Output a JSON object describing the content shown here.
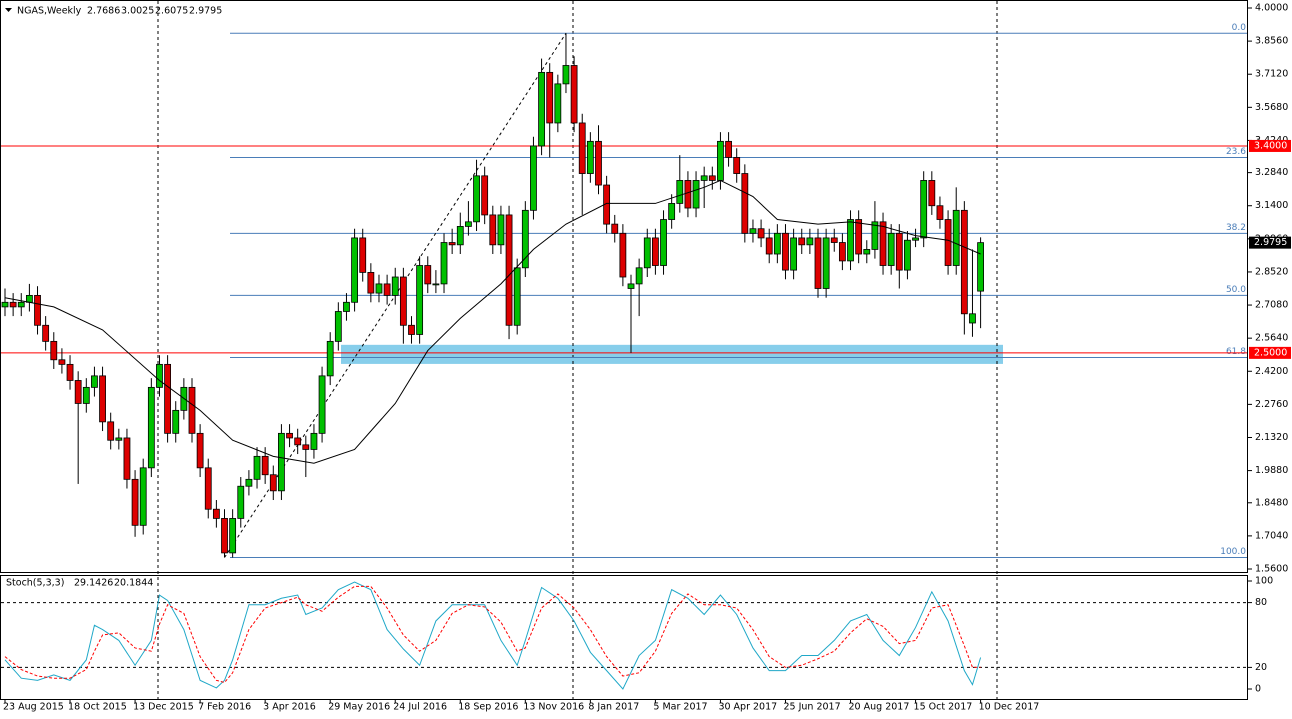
{
  "chart_data": [
    {
      "type": "candlestick",
      "symbol": "NGAS,Weekly",
      "up_color": "#00c000",
      "down_color": "#dd0000",
      "categories": [
        "23 Aug 2015",
        null,
        null,
        null,
        null,
        null,
        null,
        null,
        "18 Oct 2015",
        null,
        null,
        null,
        null,
        null,
        null,
        null,
        "13 Dec 2015",
        null,
        null,
        null,
        null,
        null,
        null,
        null,
        "7 Feb 2016",
        null,
        null,
        null,
        null,
        null,
        null,
        null,
        "3 Apr 2016",
        null,
        null,
        null,
        null,
        null,
        null,
        null,
        "29 May 2016",
        null,
        null,
        null,
        null,
        null,
        null,
        null,
        "24 Jul 2016",
        null,
        null,
        null,
        null,
        null,
        null,
        null,
        "18 Sep 2016",
        null,
        null,
        null,
        null,
        null,
        null,
        null,
        "13 Nov 2016",
        null,
        null,
        null,
        null,
        null,
        null,
        null,
        "8 Jan 2017",
        null,
        null,
        null,
        null,
        null,
        null,
        null,
        "5 Mar 2017",
        null,
        null,
        null,
        null,
        null,
        null,
        null,
        "30 Apr 2017",
        null,
        null,
        null,
        null,
        null,
        null,
        null,
        "25 Jun 2017",
        null,
        null,
        null,
        null,
        null,
        null,
        null,
        "20 Aug 2017",
        null,
        null,
        null,
        null,
        null,
        null,
        null,
        "15 Oct 2017",
        null,
        null,
        null,
        null,
        null,
        null,
        null,
        "10 Dec 2017"
      ],
      "candles": [
        [
          2.7,
          2.78,
          2.66,
          2.72
        ],
        [
          2.72,
          2.76,
          2.66,
          2.7
        ],
        [
          2.7,
          2.76,
          2.66,
          2.72
        ],
        [
          2.72,
          2.8,
          2.68,
          2.75
        ],
        [
          2.75,
          2.79,
          2.58,
          2.62
        ],
        [
          2.62,
          2.66,
          2.51,
          2.55
        ],
        [
          2.55,
          2.59,
          2.43,
          2.47
        ],
        [
          2.47,
          2.52,
          2.41,
          2.45
        ],
        [
          2.45,
          2.49,
          2.34,
          2.38
        ],
        [
          2.38,
          2.42,
          1.93,
          2.28
        ],
        [
          2.28,
          2.39,
          2.24,
          2.35
        ],
        [
          2.35,
          2.44,
          2.31,
          2.4
        ],
        [
          2.4,
          2.44,
          2.16,
          2.2
        ],
        [
          2.2,
          2.24,
          2.08,
          2.12
        ],
        [
          2.12,
          2.17,
          2.08,
          2.13
        ],
        [
          2.13,
          2.17,
          1.91,
          1.95
        ],
        [
          1.95,
          1.99,
          1.7,
          1.75
        ],
        [
          1.75,
          2.04,
          1.71,
          2.0
        ],
        [
          2.0,
          2.39,
          1.96,
          2.35
        ],
        [
          2.35,
          2.49,
          2.31,
          2.45
        ],
        [
          2.45,
          2.49,
          2.11,
          2.15
        ],
        [
          2.15,
          2.29,
          2.11,
          2.25
        ],
        [
          2.25,
          2.39,
          2.21,
          2.35
        ],
        [
          2.35,
          2.39,
          2.11,
          2.15
        ],
        [
          2.15,
          2.19,
          1.96,
          2.0
        ],
        [
          2.0,
          2.04,
          1.78,
          1.82
        ],
        [
          1.82,
          1.86,
          1.74,
          1.78
        ],
        [
          1.78,
          1.82,
          1.61,
          1.63
        ],
        [
          1.63,
          1.82,
          1.61,
          1.78
        ],
        [
          1.78,
          1.96,
          1.74,
          1.92
        ],
        [
          1.92,
          1.99,
          1.88,
          1.95
        ],
        [
          1.95,
          2.09,
          1.91,
          2.05
        ],
        [
          2.05,
          2.09,
          1.93,
          1.97
        ],
        [
          1.97,
          2.01,
          1.86,
          1.9
        ],
        [
          1.9,
          2.19,
          1.86,
          2.15
        ],
        [
          2.15,
          2.19,
          2.09,
          2.13
        ],
        [
          2.13,
          2.17,
          2.06,
          2.1
        ],
        [
          2.1,
          2.14,
          1.96,
          2.08
        ],
        [
          2.08,
          2.19,
          2.04,
          2.15
        ],
        [
          2.15,
          2.44,
          2.11,
          2.4
        ],
        [
          2.4,
          2.59,
          2.36,
          2.55
        ],
        [
          2.55,
          2.72,
          2.51,
          2.68
        ],
        [
          2.68,
          2.76,
          2.64,
          2.72
        ],
        [
          2.72,
          3.04,
          2.68,
          3.0
        ],
        [
          3.0,
          3.04,
          2.81,
          2.85
        ],
        [
          2.85,
          2.89,
          2.72,
          2.76
        ],
        [
          2.76,
          2.84,
          2.72,
          2.8
        ],
        [
          2.8,
          2.84,
          2.71,
          2.75
        ],
        [
          2.75,
          2.87,
          2.71,
          2.83
        ],
        [
          2.83,
          2.87,
          2.54,
          2.62
        ],
        [
          2.62,
          2.66,
          2.54,
          2.58
        ],
        [
          2.58,
          2.92,
          2.54,
          2.88
        ],
        [
          2.88,
          2.92,
          2.76,
          2.8
        ],
        [
          2.8,
          2.86,
          2.76,
          2.8
        ],
        [
          2.8,
          3.02,
          2.76,
          2.98
        ],
        [
          2.98,
          3.04,
          2.93,
          2.97
        ],
        [
          2.97,
          3.11,
          2.93,
          3.05
        ],
        [
          3.05,
          3.16,
          3.01,
          3.07
        ],
        [
          3.07,
          3.34,
          3.03,
          3.27
        ],
        [
          3.27,
          3.31,
          3.06,
          3.1
        ],
        [
          3.1,
          3.14,
          2.93,
          2.97
        ],
        [
          2.97,
          3.14,
          2.93,
          3.1
        ],
        [
          3.1,
          3.14,
          2.56,
          2.62
        ],
        [
          2.62,
          2.91,
          2.58,
          2.87
        ],
        [
          2.87,
          3.16,
          2.83,
          3.12
        ],
        [
          3.12,
          3.44,
          3.08,
          3.4
        ],
        [
          3.4,
          3.78,
          3.36,
          3.72
        ],
        [
          3.72,
          3.76,
          3.35,
          3.5
        ],
        [
          3.5,
          3.71,
          3.46,
          3.67
        ],
        [
          3.67,
          3.89,
          3.63,
          3.75
        ],
        [
          3.75,
          3.79,
          3.46,
          3.5
        ],
        [
          3.5,
          3.54,
          3.1,
          3.28
        ],
        [
          3.28,
          3.46,
          3.24,
          3.42
        ],
        [
          3.42,
          3.49,
          3.19,
          3.23
        ],
        [
          3.23,
          3.27,
          3.02,
          3.06
        ],
        [
          3.06,
          3.1,
          2.98,
          3.02
        ],
        [
          3.02,
          3.06,
          2.79,
          2.83
        ],
        [
          2.78,
          2.84,
          2.5,
          2.8
        ],
        [
          2.8,
          2.91,
          2.66,
          2.87
        ],
        [
          2.87,
          3.04,
          2.83,
          3.0
        ],
        [
          3.0,
          3.04,
          2.84,
          2.88
        ],
        [
          2.88,
          3.12,
          2.84,
          3.08
        ],
        [
          3.08,
          3.19,
          3.04,
          3.15
        ],
        [
          3.15,
          3.36,
          3.11,
          3.25
        ],
        [
          3.25,
          3.29,
          3.09,
          3.13
        ],
        [
          3.13,
          3.29,
          3.09,
          3.25
        ],
        [
          3.25,
          3.31,
          3.13,
          3.27
        ],
        [
          3.27,
          3.31,
          3.21,
          3.25
        ],
        [
          3.25,
          3.46,
          3.21,
          3.42
        ],
        [
          3.42,
          3.46,
          3.31,
          3.35
        ],
        [
          3.35,
          3.39,
          3.24,
          3.28
        ],
        [
          3.28,
          3.32,
          2.98,
          3.02
        ],
        [
          3.02,
          3.08,
          2.98,
          3.04
        ],
        [
          3.04,
          3.08,
          2.96,
          3.0
        ],
        [
          3.0,
          3.04,
          2.89,
          2.93
        ],
        [
          2.93,
          3.06,
          2.89,
          3.02
        ],
        [
          3.02,
          3.06,
          2.82,
          2.86
        ],
        [
          2.86,
          3.04,
          2.82,
          3.0
        ],
        [
          3.0,
          3.04,
          2.93,
          2.97
        ],
        [
          2.97,
          3.04,
          2.93,
          3.0
        ],
        [
          3.0,
          3.04,
          2.74,
          2.78
        ],
        [
          2.78,
          3.04,
          2.74,
          3.0
        ],
        [
          3.0,
          3.04,
          2.94,
          2.98
        ],
        [
          2.98,
          3.02,
          2.86,
          2.9
        ],
        [
          2.9,
          3.12,
          2.86,
          3.08
        ],
        [
          3.08,
          3.12,
          2.89,
          2.93
        ],
        [
          2.93,
          2.99,
          2.89,
          2.95
        ],
        [
          2.95,
          3.16,
          2.91,
          3.07
        ],
        [
          3.07,
          3.11,
          2.84,
          2.88
        ],
        [
          2.88,
          3.06,
          2.84,
          3.02
        ],
        [
          3.02,
          3.06,
          2.78,
          2.86
        ],
        [
          2.86,
          3.03,
          2.82,
          2.99
        ],
        [
          2.99,
          3.04,
          2.96,
          3.0
        ],
        [
          3.0,
          3.29,
          2.96,
          3.25
        ],
        [
          3.25,
          3.29,
          3.1,
          3.14
        ],
        [
          3.14,
          3.18,
          3.04,
          3.08
        ],
        [
          3.08,
          3.12,
          2.84,
          2.88
        ],
        [
          2.88,
          3.22,
          2.84,
          3.12
        ],
        [
          3.12,
          3.16,
          2.58,
          2.67
        ],
        [
          2.63,
          2.95,
          2.57,
          2.67
        ],
        [
          2.7686,
          3.0025,
          2.6075,
          2.9795
        ]
      ],
      "ylim": [
        1.56,
        4.0
      ],
      "yticks": [
        {
          "value": 4.0,
          "label": "4.0000"
        },
        {
          "value": 3.856,
          "label": "3.8560"
        },
        {
          "value": 3.712,
          "label": "3.7120"
        },
        {
          "value": 3.568,
          "label": "3.5680"
        },
        {
          "value": 3.424,
          "label": "3.4240"
        },
        {
          "value": 3.284,
          "label": "3.2840"
        },
        {
          "value": 3.14,
          "label": "3.1400"
        },
        {
          "value": 2.996,
          "label": "2.9960"
        },
        {
          "value": 2.852,
          "label": "2.8520"
        },
        {
          "value": 2.708,
          "label": "2.7080"
        },
        {
          "value": 2.564,
          "label": "2.5640"
        },
        {
          "value": 2.42,
          "label": "2.4200"
        },
        {
          "value": 2.276,
          "label": "2.2760"
        },
        {
          "value": 2.132,
          "label": "2.1320"
        },
        {
          "value": 1.988,
          "label": "1.9880"
        },
        {
          "value": 1.848,
          "label": "1.8480"
        },
        {
          "value": 1.704,
          "label": "1.7040"
        },
        {
          "value": 1.56,
          "label": "1.5600"
        }
      ],
      "ma": {
        "color": "#000000",
        "x": [
          0,
          6,
          12,
          19,
          24,
          28,
          33,
          38,
          43,
          48,
          52,
          56,
          61,
          65,
          69,
          74,
          80,
          86,
          88,
          92,
          95,
          100,
          104,
          108,
          112,
          116,
          120
        ],
        "values": [
          2.74,
          2.7,
          2.6,
          2.38,
          2.25,
          2.12,
          2.05,
          2.02,
          2.08,
          2.28,
          2.51,
          2.65,
          2.8,
          2.95,
          3.06,
          3.15,
          3.15,
          3.22,
          3.25,
          3.18,
          3.08,
          3.06,
          3.07,
          3.05,
          3.01,
          2.99,
          2.93
        ]
      },
      "fibonacci": {
        "color": "#4a7db8",
        "levels": [
          {
            "label": "0.0",
            "price": 3.89
          },
          {
            "label": "23.6",
            "price": 3.35
          },
          {
            "label": "38.2",
            "price": 3.02
          },
          {
            "label": "50.0",
            "price": 2.75
          },
          {
            "label": "61.8",
            "price": 2.48
          },
          {
            "label": "100.0",
            "price": 1.61
          }
        ]
      },
      "hlines": [
        {
          "value": 3.4,
          "label": "3.4000",
          "color": "#ff0000"
        },
        {
          "value": 2.5,
          "label": "2.5000",
          "color": "#ff0000"
        }
      ],
      "zone": {
        "from": 2.452,
        "to": 2.535,
        "color": "#87ceeb"
      }
    },
    {
      "type": "line",
      "title": "Stoch(5,3,3)",
      "x": [
        0,
        2,
        4,
        6,
        8,
        10,
        11,
        12,
        14,
        16,
        18,
        19,
        20,
        22,
        24,
        26,
        27,
        28,
        30,
        32,
        34,
        36,
        37,
        39,
        41,
        43,
        45,
        47,
        49,
        51,
        53,
        55,
        57,
        59,
        61,
        63,
        64,
        66,
        68,
        70,
        72,
        74,
        76,
        78,
        80,
        82,
        84,
        86,
        88,
        90,
        92,
        94,
        96,
        98,
        100,
        102,
        104,
        106,
        108,
        110,
        112,
        114,
        116,
        118,
        119,
        120
      ],
      "series": [
        {
          "color": "#20a8c8",
          "dashed": false,
          "values": [
            27,
            10,
            8,
            13,
            8,
            27,
            59,
            55,
            45,
            22,
            45,
            87,
            82,
            55,
            8,
            1,
            8,
            27,
            78,
            78,
            84,
            87,
            69,
            75,
            92,
            99,
            92,
            55,
            37,
            22,
            63,
            78,
            78,
            78,
            45,
            22,
            45,
            94,
            84,
            63,
            34,
            17,
            0,
            31,
            45,
            92,
            84,
            69,
            87,
            69,
            38,
            17,
            17,
            31,
            31,
            45,
            63,
            69,
            45,
            31,
            57,
            90,
            63,
            17,
            4,
            29.1426
          ]
        },
        {
          "color": "#ff0000",
          "dashed": true,
          "values": [
            30,
            18,
            12,
            10,
            10,
            18,
            35,
            50,
            52,
            38,
            35,
            60,
            78,
            70,
            30,
            8,
            6,
            15,
            55,
            75,
            80,
            85,
            78,
            72,
            85,
            95,
            95,
            75,
            50,
            35,
            45,
            70,
            78,
            76,
            62,
            35,
            38,
            75,
            88,
            75,
            55,
            30,
            12,
            15,
            35,
            70,
            88,
            78,
            78,
            75,
            55,
            30,
            20,
            22,
            28,
            35,
            52,
            65,
            58,
            42,
            45,
            75,
            78,
            40,
            20,
            20.1844
          ]
        }
      ],
      "ylim": [
        0,
        100
      ],
      "yticks": [
        100,
        80,
        20,
        0
      ],
      "levels": [
        80,
        20
      ]
    }
  ]
}
